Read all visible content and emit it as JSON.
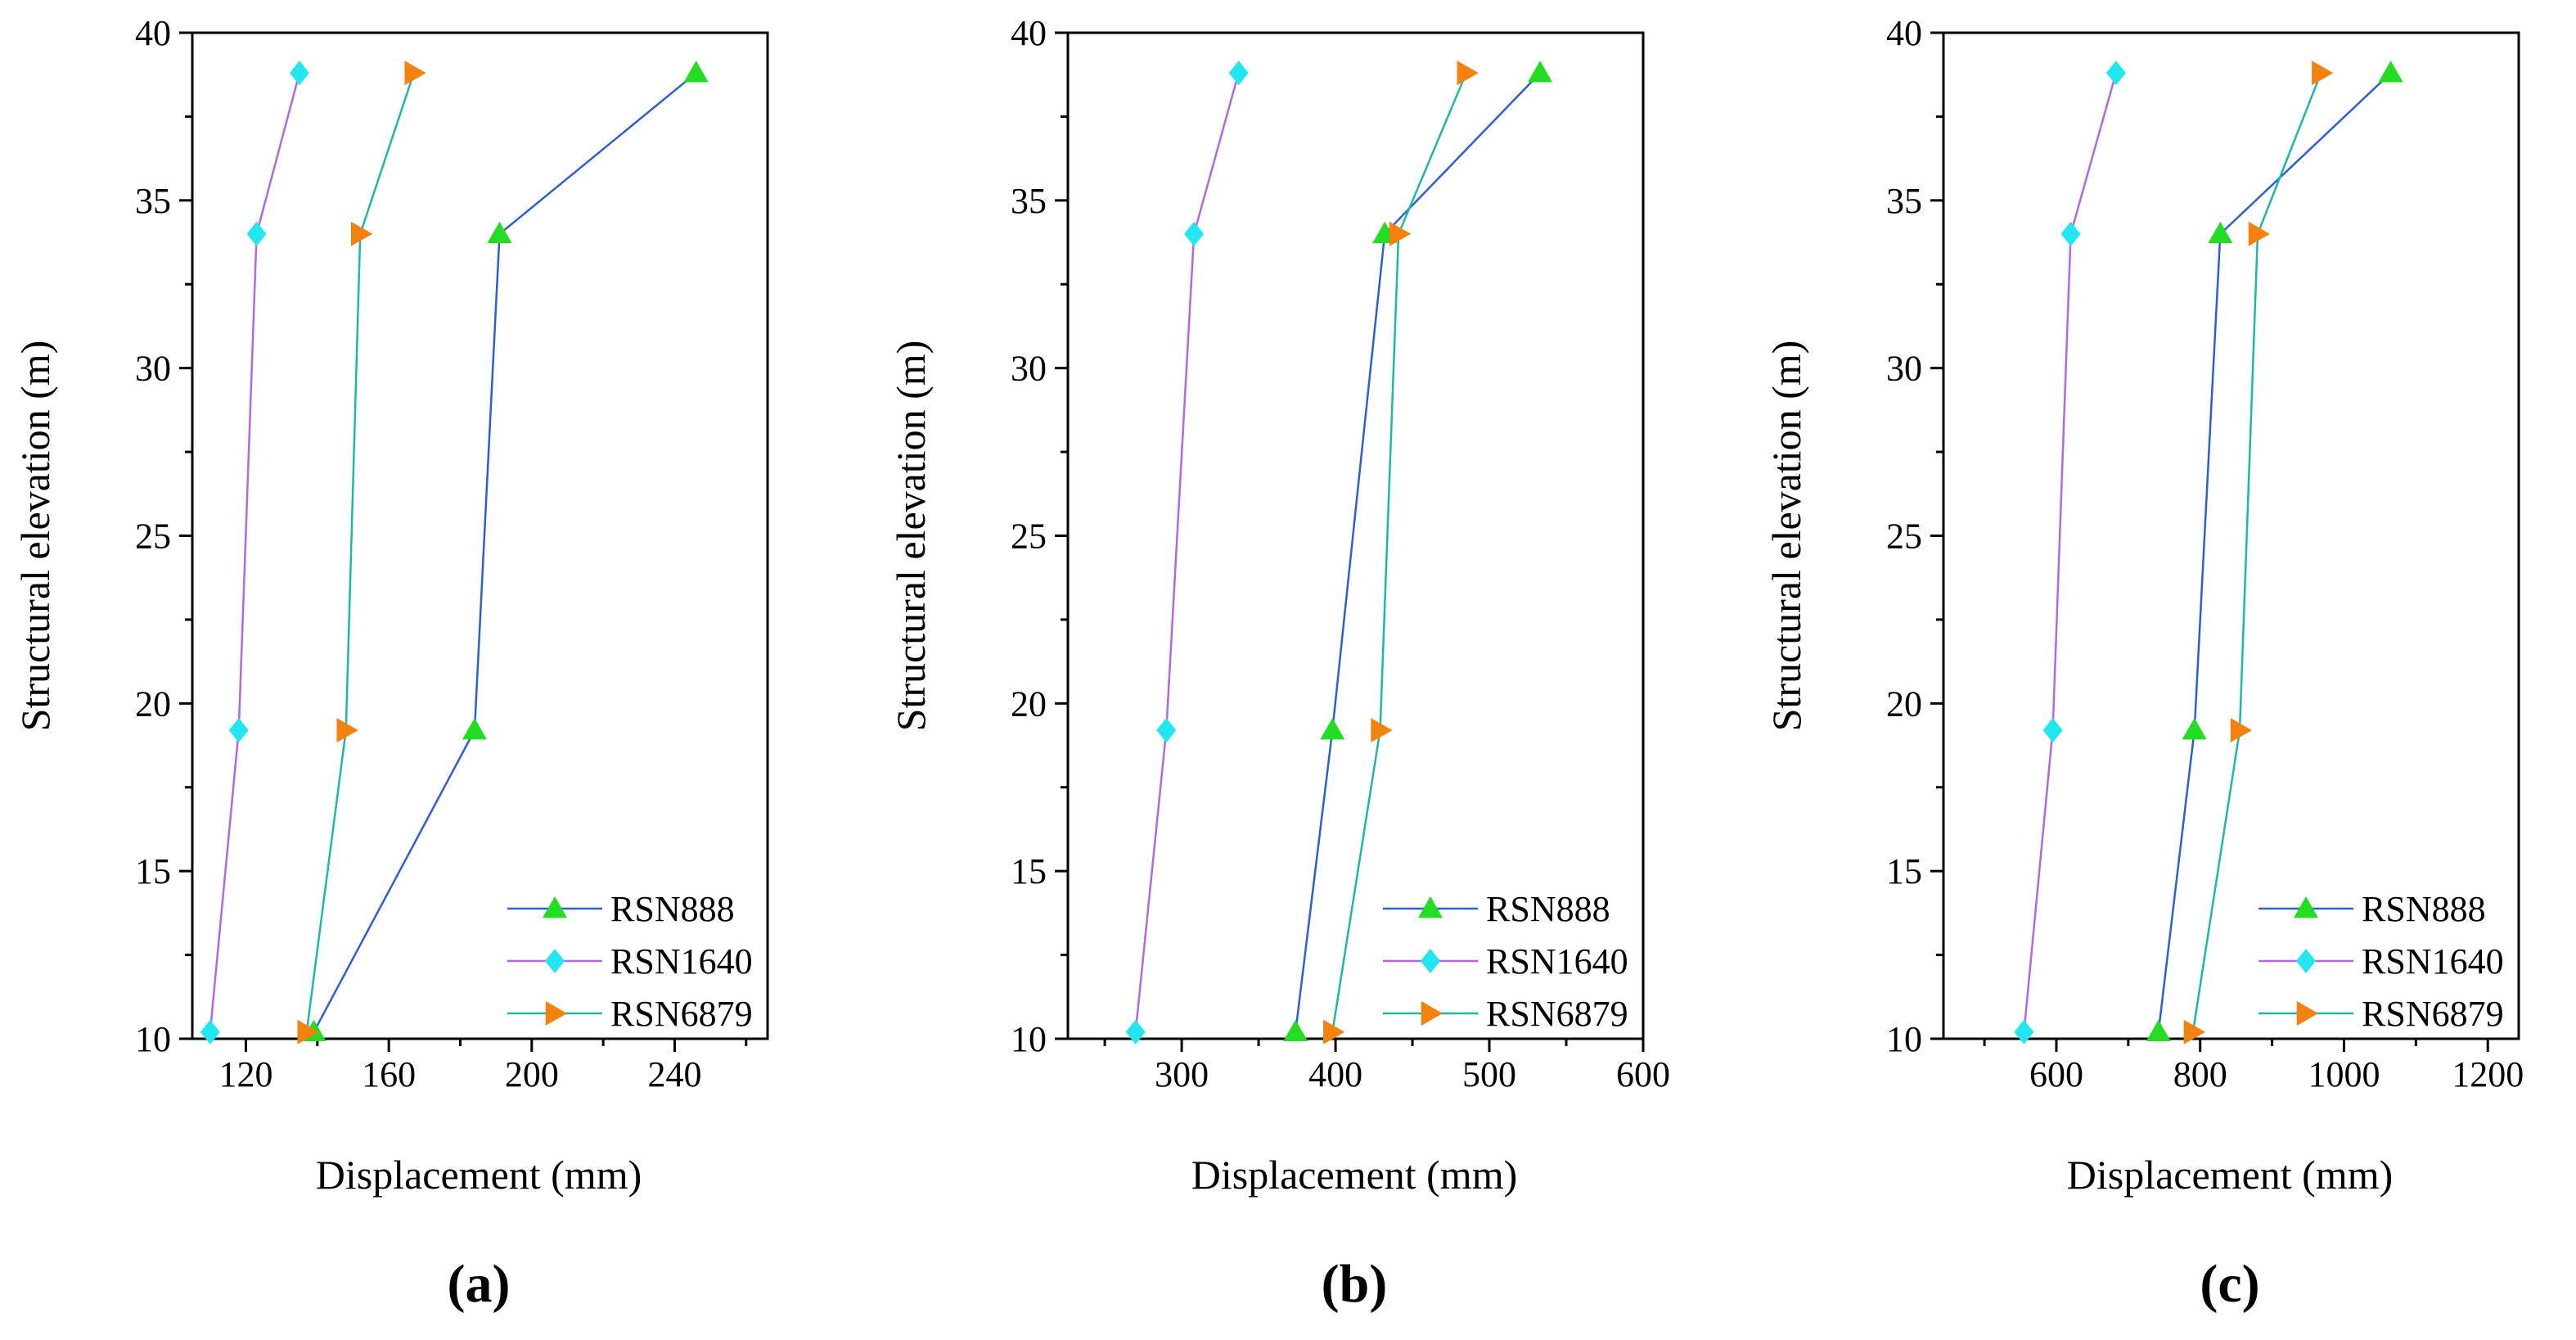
{
  "chart_data": [
    {
      "type": "line",
      "panel": "(a)",
      "xlabel": "Displacement (mm)",
      "ylabel": "Structural elevation (m)",
      "y": [
        10.2,
        19.2,
        34,
        38.8
      ],
      "xlim": [
        105,
        266
      ],
      "xticks": [
        120,
        160,
        200,
        240
      ],
      "ylim": [
        10,
        40
      ],
      "yticks": [
        10,
        15,
        20,
        25,
        30,
        35,
        40
      ],
      "legend": "lower right",
      "series": [
        {
          "name": "RSN888",
          "color": "#2e5ed6",
          "marker_color": "#22dd22",
          "marker": "triangle-up",
          "values": [
            139,
            184,
            191,
            246
          ]
        },
        {
          "name": "RSN1640",
          "color": "#b468e0",
          "marker_color": "#22e6f0",
          "marker": "diamond",
          "values": [
            110,
            118,
            123,
            135
          ]
        },
        {
          "name": "RSN6879",
          "color": "#1fb8a2",
          "marker_color": "#f5820f",
          "marker": "triangle-right",
          "values": [
            137,
            148,
            152,
            167
          ]
        }
      ]
    },
    {
      "type": "line",
      "panel": "(b)",
      "xlabel": "Displacement (mm)",
      "ylabel": "Structural elevation (m)",
      "y": [
        10.2,
        19.2,
        34,
        38.8
      ],
      "xlim": [
        226,
        600
      ],
      "xticks": [
        300,
        400,
        500,
        600
      ],
      "ylim": [
        10,
        40
      ],
      "yticks": [
        10,
        15,
        20,
        25,
        30,
        35,
        40
      ],
      "legend": "lower right",
      "series": [
        {
          "name": "RSN888",
          "color": "#2e5ed6",
          "marker_color": "#22dd22",
          "marker": "triangle-up",
          "values": [
            374,
            398,
            432,
            533
          ]
        },
        {
          "name": "RSN1640",
          "color": "#b468e0",
          "marker_color": "#22e6f0",
          "marker": "diamond",
          "values": [
            270,
            290,
            308,
            337
          ]
        },
        {
          "name": "RSN6879",
          "color": "#1fb8a2",
          "marker_color": "#f5820f",
          "marker": "triangle-right",
          "values": [
            398,
            429,
            441,
            485
          ]
        }
      ]
    },
    {
      "type": "line",
      "panel": "(c)",
      "xlabel": "Displacement (mm)",
      "ylabel": "Structural elevation (m)",
      "y": [
        10.2,
        19.2,
        34,
        38.8
      ],
      "xlim": [
        443,
        1243
      ],
      "xticks": [
        600,
        800,
        1000,
        1200
      ],
      "ylim": [
        10,
        40
      ],
      "yticks": [
        10,
        15,
        20,
        25,
        30,
        35,
        40
      ],
      "legend": "lower right",
      "series": [
        {
          "name": "RSN888",
          "color": "#2e5ed6",
          "marker_color": "#22dd22",
          "marker": "triangle-up",
          "values": [
            742,
            792,
            828,
            1065
          ]
        },
        {
          "name": "RSN1640",
          "color": "#b468e0",
          "marker_color": "#22e6f0",
          "marker": "diamond",
          "values": [
            555,
            595,
            620,
            683
          ]
        },
        {
          "name": "RSN6879",
          "color": "#1fb8a2",
          "marker_color": "#f5820f",
          "marker": "triangle-right",
          "values": [
            790,
            855,
            880,
            968
          ]
        }
      ]
    }
  ]
}
